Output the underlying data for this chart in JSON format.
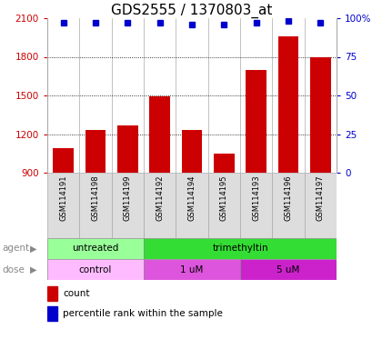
{
  "title": "GDS2555 / 1370803_at",
  "samples": [
    "GSM114191",
    "GSM114198",
    "GSM114199",
    "GSM114192",
    "GSM114194",
    "GSM114195",
    "GSM114193",
    "GSM114196",
    "GSM114197"
  ],
  "counts": [
    1090,
    1230,
    1270,
    1490,
    1230,
    1050,
    1700,
    1960,
    1800
  ],
  "percentile_ranks": [
    97,
    97,
    97,
    97,
    96,
    96,
    97,
    98,
    97
  ],
  "bar_color": "#cc0000",
  "dot_color": "#0000cc",
  "ylim_left": [
    900,
    2100
  ],
  "yticks_left": [
    900,
    1200,
    1500,
    1800,
    2100
  ],
  "ylim_right": [
    0,
    100
  ],
  "yticks_right": [
    0,
    25,
    50,
    75,
    100
  ],
  "ytick_labels_right": [
    "0",
    "25",
    "50",
    "75",
    "100%"
  ],
  "tick_label_color_left": "#cc0000",
  "tick_label_color_right": "#0000cc",
  "agent_labels": [
    {
      "text": "untreated",
      "start": 0,
      "end": 3,
      "color": "#99ff99"
    },
    {
      "text": "trimethyltin",
      "start": 3,
      "end": 9,
      "color": "#33dd33"
    }
  ],
  "dose_labels": [
    {
      "text": "control",
      "start": 0,
      "end": 3,
      "color": "#ffbbff"
    },
    {
      "text": "1 uM",
      "start": 3,
      "end": 6,
      "color": "#dd55dd"
    },
    {
      "text": "5 uM",
      "start": 6,
      "end": 9,
      "color": "#cc22cc"
    }
  ],
  "legend_count_color": "#cc0000",
  "legend_dot_color": "#0000cc",
  "background_color": "#ffffff",
  "title_fontsize": 11,
  "bar_width": 0.65,
  "agent_row_label": "agent",
  "dose_row_label": "dose",
  "sample_box_color": "#dddddd",
  "sample_box_edge": "#aaaaaa"
}
